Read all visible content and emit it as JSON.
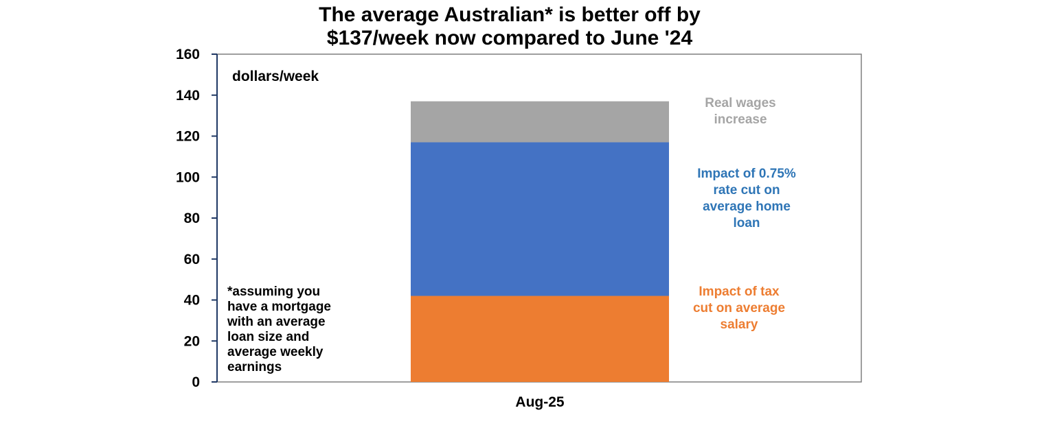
{
  "chart_data": {
    "type": "bar",
    "stacked": true,
    "title": [
      "The average Australian* is better off by",
      "$137/week now compared to June '24"
    ],
    "ylabel": "dollars/week",
    "xlabel": "",
    "ylim": [
      0,
      160
    ],
    "yticks": [
      "0",
      "20",
      "40",
      "60",
      "80",
      "100",
      "120",
      "140",
      "160"
    ],
    "grid": false,
    "categories": [
      "Aug-25"
    ],
    "series": [
      {
        "name": "Impact of tax cut on average salary",
        "values": [
          42
        ],
        "color": "#ED7D31"
      },
      {
        "name": "Impact of 0.75% rate cut on average home loan",
        "values": [
          75
        ],
        "color": "#4472C4"
      },
      {
        "name": "Real wages increase",
        "values": [
          20
        ],
        "color": "#A5A5A5"
      }
    ],
    "annotations": [
      {
        "lines": [
          "Real wages",
          "increase"
        ],
        "color": "#A5A5A5"
      },
      {
        "lines": [
          "Impact of 0.75%",
          "rate cut on",
          "average home",
          "loan"
        ],
        "color": "#2E75B6"
      },
      {
        "lines": [
          "Impact of tax",
          "cut on average",
          "salary"
        ],
        "color": "#ED7D31"
      }
    ],
    "note": [
      "*assuming you",
      "have a mortgage",
      "with an average",
      "loan size and",
      "average weekly",
      "earnings"
    ]
  }
}
